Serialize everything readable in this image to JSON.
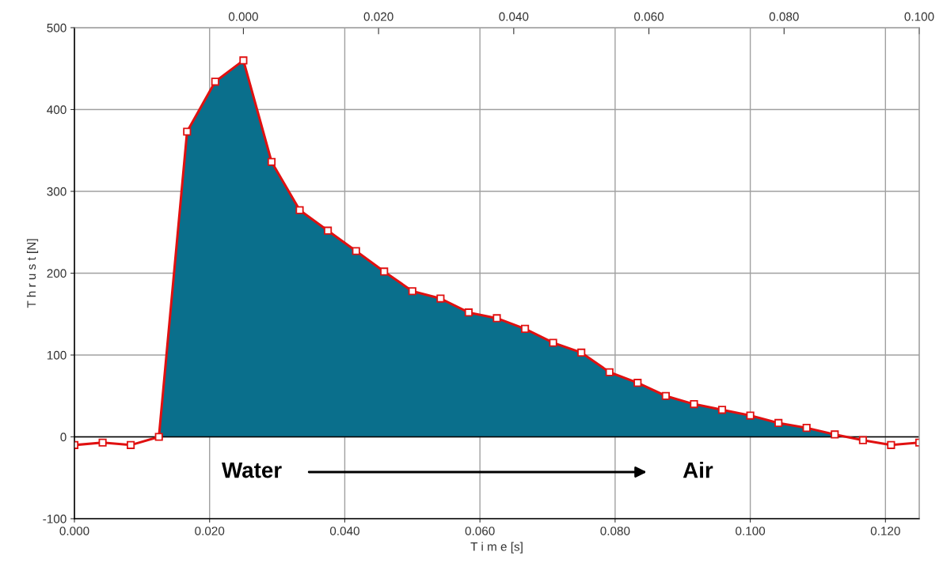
{
  "chart_data": {
    "type": "area",
    "xlabel": "T i m e [s]",
    "ylabel": "T h r u s t [N]",
    "x": [
      0,
      0.00417,
      0.00833,
      0.0125,
      0.01667,
      0.02083,
      0.025,
      0.02917,
      0.03333,
      0.0375,
      0.04167,
      0.04583,
      0.05,
      0.05417,
      0.05833,
      0.0625,
      0.06667,
      0.07083,
      0.075,
      0.07917,
      0.08333,
      0.0875,
      0.09167,
      0.09583,
      0.1,
      0.10417,
      0.10833,
      0.1125,
      0.11667,
      0.12083,
      0.125
    ],
    "series": [
      {
        "color": "#0a6f8c",
        "values": [
          null,
          null,
          null,
          0,
          373,
          434,
          460,
          336,
          277,
          252,
          227,
          202,
          178,
          169,
          152,
          145,
          132,
          115,
          103,
          79,
          66,
          50,
          40,
          33,
          26,
          17,
          11,
          3,
          null,
          null,
          null
        ]
      },
      {
        "type": "line",
        "marker": "square",
        "color": "#e01010",
        "values": [
          -10,
          -7,
          -10,
          0,
          373,
          434,
          460,
          336,
          277,
          252,
          227,
          202,
          178,
          169,
          152,
          145,
          132,
          115,
          103,
          79,
          66,
          50,
          40,
          33,
          26,
          17,
          11,
          3,
          -4,
          -10,
          -7
        ]
      }
    ],
    "line_style": "solid",
    "xlim": [
      0,
      0.125
    ],
    "xticks": [
      {
        "value": 0,
        "label": "0.000"
      },
      {
        "value": 0.02,
        "label": "0.020"
      },
      {
        "value": 0.04,
        "label": "0.040"
      },
      {
        "value": 0.06,
        "label": "0.060"
      },
      {
        "value": 0.08,
        "label": "0.080"
      },
      {
        "value": 0.1,
        "label": "0.100"
      },
      {
        "value": 0.12,
        "label": "0.120"
      }
    ],
    "x2lim": [
      -0.025,
      0.1
    ],
    "x2ticks": [
      {
        "value": 0,
        "label": "0.000"
      },
      {
        "value": 0.02,
        "label": "0.020"
      },
      {
        "value": 0.04,
        "label": "0.040"
      },
      {
        "value": 0.06,
        "label": "0.060"
      },
      {
        "value": 0.08,
        "label": "0.080"
      },
      {
        "value": 0.1,
        "label": "0.100"
      }
    ],
    "ylim": [
      -100,
      500
    ],
    "yticks": [
      -100,
      0,
      100,
      200,
      300,
      400,
      500
    ],
    "grid": true,
    "legend": false,
    "ref_lines": [
      {
        "axis": "y",
        "value": 0,
        "label": null,
        "color": "#000000"
      }
    ],
    "annotations": [
      "Water",
      "Air"
    ]
  }
}
